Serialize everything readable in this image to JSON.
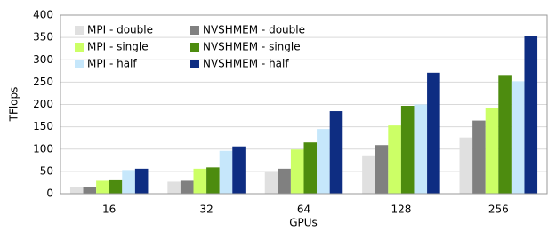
{
  "chart_data": {
    "type": "bar",
    "x_label": "GPUs",
    "y_label": "TFlops",
    "categories": [
      "16",
      "32",
      "64",
      "128",
      "256"
    ],
    "series": [
      {
        "name": "MPI - double",
        "color": "#e0e0e0",
        "values": [
          14,
          27,
          48,
          84,
          126
        ]
      },
      {
        "name": "NVSHMEM - double",
        "color": "#808080",
        "values": [
          14,
          29,
          56,
          109,
          164
        ]
      },
      {
        "name": "MPI - single",
        "color": "#ccff66",
        "values": [
          29,
          56,
          99,
          153,
          193
        ]
      },
      {
        "name": "NVSHMEM - single",
        "color": "#4d8c0f",
        "values": [
          30,
          59,
          115,
          197,
          266
        ]
      },
      {
        "name": "MPI - half",
        "color": "#c6e7fb",
        "values": [
          53,
          96,
          145,
          200,
          252
        ]
      },
      {
        "name": "NVSHMEM - half",
        "color": "#0e2d82",
        "values": [
          56,
          106,
          185,
          271,
          353
        ]
      }
    ],
    "ylim": [
      0,
      400
    ],
    "yticks": [
      0,
      50,
      100,
      150,
      200,
      250,
      300,
      350,
      400
    ],
    "grid": true,
    "legend": "upper left"
  }
}
